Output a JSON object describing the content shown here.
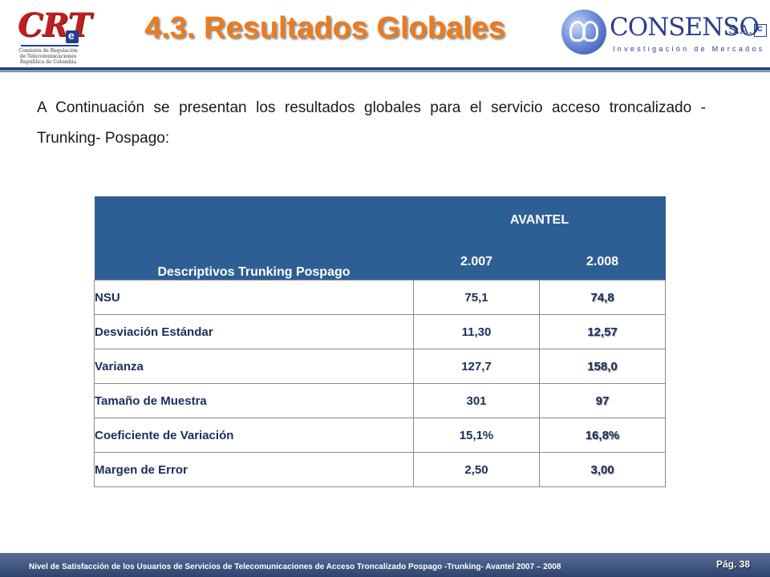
{
  "header": {
    "title": "4.3. Resultados Globales",
    "crt_logo": {
      "mark": "CRT",
      "subtitle_lines": [
        "Comisión de Regulación",
        "de Telecomunicaciones",
        "República de Colombia"
      ]
    },
    "consenso_logo": {
      "name": "CONSENSO",
      "suffix": "S.A.",
      "tagline": "Investigación de Mercados"
    }
  },
  "intro": "A Continuación se presentan los resultados globales para el servicio acceso troncalizado -Trunking- Pospago:",
  "table": {
    "row_header": "Descriptivos Trunking Pospago",
    "group_header": "AVANTEL",
    "years": [
      "2.007",
      "2.008"
    ],
    "rows": [
      {
        "label": "NSU",
        "y2007": "75,1",
        "y2008": "74,8"
      },
      {
        "label": "Desviación Estándar",
        "y2007": "11,30",
        "y2008": "12,57"
      },
      {
        "label": "Varianza",
        "y2007": "127,7",
        "y2008": "158,0"
      },
      {
        "label": "Tamaño de Muestra",
        "y2007": "301",
        "y2008": "97"
      },
      {
        "label": "Coeficiente de Variación",
        "y2007": "15,1%",
        "y2008": "16,8%"
      },
      {
        "label": "Margen de Error",
        "y2007": "2,50",
        "y2008": "3,00"
      }
    ]
  },
  "footer": {
    "text": "Nivel de Satisfacción de los Usuarios de Servicios de Telecomunicaciones de Acceso Troncalizado Pospago -Trunking- Avantel 2007 – 2008",
    "page": "Pág. 38"
  },
  "colors": {
    "title": "#f07a1a",
    "table_header_bg": "#2e5f94",
    "footer_bg": "#2e446e"
  }
}
